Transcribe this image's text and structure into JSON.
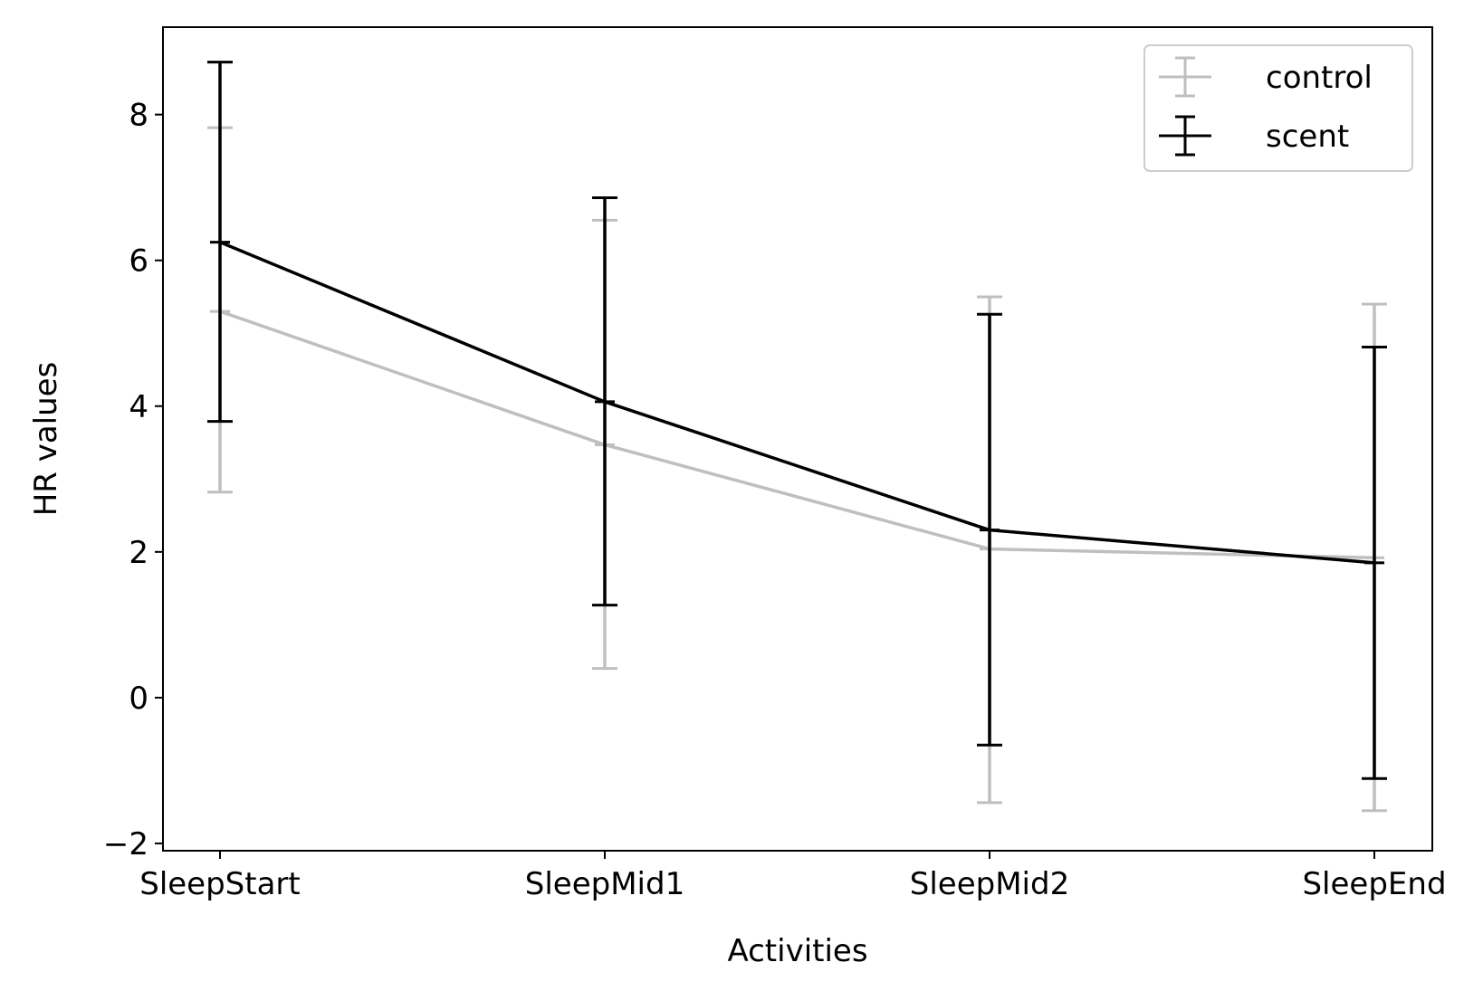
{
  "chart_data": {
    "type": "line",
    "error_bars": true,
    "categories": [
      "SleepStart",
      "SleepMid1",
      "SleepMid2",
      "SleepEnd"
    ],
    "xlabel": "Activities",
    "ylabel": "HR values",
    "ylim": [
      -2.1,
      9.2
    ],
    "yticks": [
      -2,
      0,
      2,
      4,
      6,
      8
    ],
    "grid": false,
    "legend_position": "top-right",
    "series": [
      {
        "name": "control",
        "color": "#bfbfbf",
        "values": [
          5.3,
          3.47,
          2.04,
          1.92
        ],
        "err_low": [
          2.82,
          0.4,
          -1.44,
          -1.55
        ],
        "err_high": [
          7.82,
          6.55,
          5.5,
          5.4
        ]
      },
      {
        "name": "scent",
        "color": "#000000",
        "values": [
          6.25,
          4.06,
          2.3,
          1.85
        ],
        "err_low": [
          3.79,
          1.27,
          -0.65,
          -1.11
        ],
        "err_high": [
          8.72,
          6.86,
          5.26,
          4.81
        ]
      }
    ]
  }
}
